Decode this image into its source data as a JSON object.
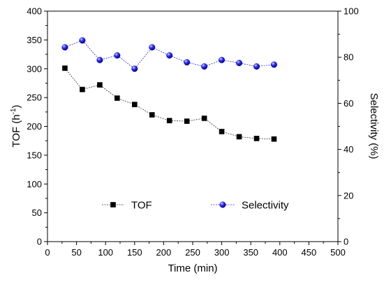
{
  "chart_data": {
    "type": "line",
    "x": [
      30,
      60,
      90,
      120,
      150,
      180,
      210,
      240,
      270,
      300,
      330,
      360,
      390
    ],
    "xlabel": "Time (min)",
    "xlim": [
      0,
      500
    ],
    "xticks": [
      0,
      50,
      100,
      150,
      200,
      250,
      300,
      350,
      400,
      450,
      500
    ],
    "ylabel_left": "TOF (h",
    "ylabel_left_sup": "-1",
    "ylabel_left_end": ")",
    "ylim_left": [
      0,
      400
    ],
    "yticks_left": [
      0,
      50,
      100,
      150,
      200,
      250,
      300,
      350,
      400
    ],
    "ylabel_right": "Selectivity (%)",
    "ylim_right": [
      0,
      100
    ],
    "yticks_right": [
      0,
      20,
      40,
      60,
      80,
      100
    ],
    "grid": false,
    "legend_position": "bottom-center",
    "series": [
      {
        "name": "TOF",
        "axis": "left",
        "marker": "square",
        "color": "#000000",
        "values": [
          301,
          264,
          272,
          249,
          238,
          220,
          210,
          209,
          214,
          191,
          182,
          179,
          178
        ]
      },
      {
        "name": "Selectivity",
        "axis": "right",
        "marker": "circle",
        "color": "#1a1aff",
        "values": [
          84.3,
          87.3,
          78.8,
          80.8,
          75.0,
          84.3,
          80.8,
          77.8,
          76.0,
          78.8,
          77.5,
          76.0,
          76.8
        ]
      }
    ]
  }
}
